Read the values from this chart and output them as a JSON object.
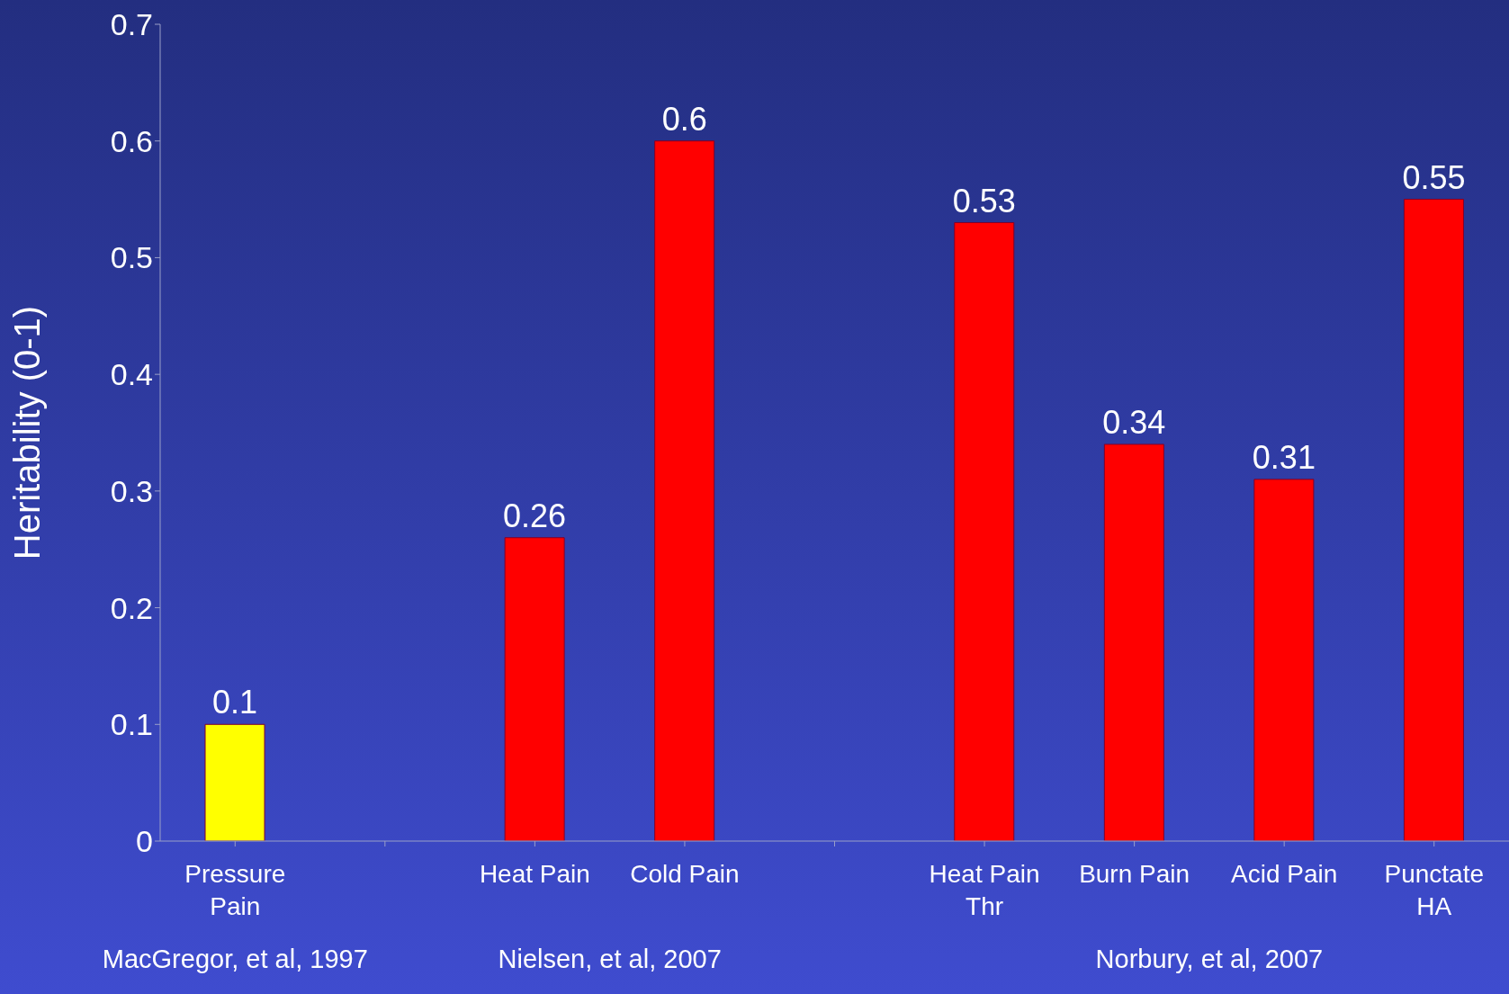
{
  "chart_data": {
    "type": "bar",
    "ylabel": "Heritability (0-1)",
    "categories": [
      "Pressure Pain",
      null,
      "Heat Pain",
      "Cold Pain",
      null,
      "Heat Pain Thr",
      "Burn Pain",
      "Acid Pain",
      "Punctate HA"
    ],
    "values": [
      0.1,
      null,
      0.26,
      0.6,
      null,
      0.53,
      0.34,
      0.31,
      0.55
    ],
    "colors": [
      "#ffff00",
      "#ff0000",
      "#ff0000",
      "#ff0000",
      "#ff0000",
      "#ff0000",
      "#ff0000",
      "#ff0000",
      "#ff0000"
    ],
    "ylim": [
      0,
      0.7
    ],
    "yticks": [
      0,
      0.1,
      0.2,
      0.3,
      0.4,
      0.5,
      0.6,
      0.7
    ],
    "data_labels": true,
    "grid": false,
    "annotations": [
      "MacGregor, et al, 1997",
      "Nielsen, et al, 2007",
      "Norbury, et al, 2007"
    ]
  }
}
